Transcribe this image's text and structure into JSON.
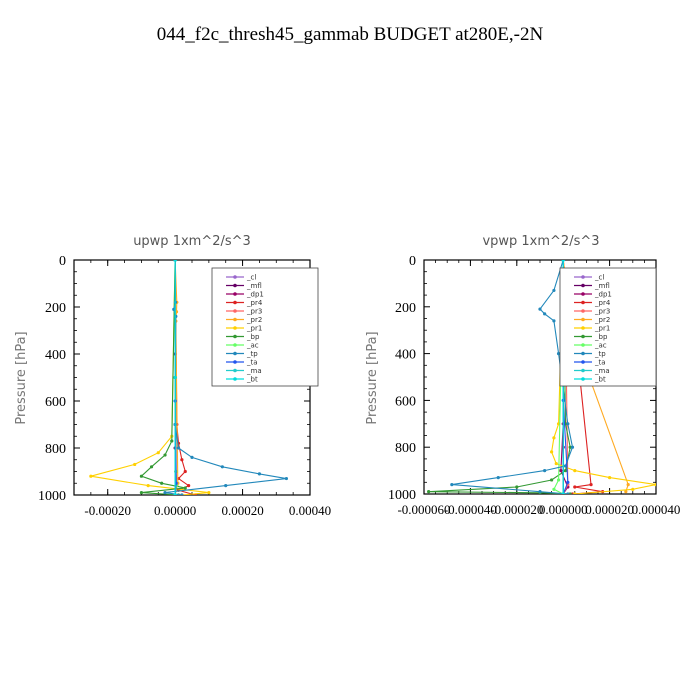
{
  "figure": {
    "title": "044_f2c_thresh45_gammab  BUDGET at280E,-2N"
  },
  "chart_data": [
    {
      "type": "line",
      "title": "upwp   1xm^2/s^3",
      "ylabel": "Pressure  [hPa]",
      "ylim": [
        1000,
        0
      ],
      "xlim": [
        -0.0003,
        0.0004
      ],
      "y_ticks": [
        0,
        200,
        400,
        600,
        800,
        1000
      ],
      "y_tick_labels": [
        "0",
        "200",
        "400",
        "600",
        "800",
        "1000"
      ],
      "x_ticks": [
        -0.0002,
        0.0,
        0.0002,
        0.0004
      ],
      "x_tick_labels": [
        "-0.00020",
        "0.00000",
        "0.00020",
        "0.00040"
      ],
      "legend_position": "top-right",
      "series": [
        {
          "name": "_cl",
          "color": "#9966cc",
          "x": [
            0,
            0,
            0
          ],
          "y": [
            0,
            500,
            1000
          ]
        },
        {
          "name": "_mfl",
          "color": "#660066",
          "x": [
            0,
            0,
            0,
            0
          ],
          "y": [
            0,
            400,
            800,
            1000
          ]
        },
        {
          "name": "_dp1",
          "color": "#990066",
          "x": [
            0,
            0,
            2e-06,
            4e-06,
            0
          ],
          "y": [
            0,
            700,
            900,
            960,
            1000
          ]
        },
        {
          "name": "_pr4",
          "color": "#dd2222",
          "x": [
            0,
            5e-06,
            1e-05,
            2e-05,
            3e-05,
            1e-05,
            4e-05,
            1e-05,
            6e-05
          ],
          "y": [
            0,
            700,
            780,
            850,
            900,
            930,
            960,
            980,
            1000
          ]
        },
        {
          "name": "_pr3",
          "color": "#ff6666",
          "x": [
            0,
            3e-06,
            5e-06,
            0
          ],
          "y": [
            0,
            900,
            960,
            1000
          ]
        },
        {
          "name": "_pr2",
          "color": "#ffaa22",
          "x": [
            0,
            5e-06,
            4e-06,
            2e-06,
            8e-06,
            0
          ],
          "y": [
            0,
            180,
            220,
            260,
            950,
            1000
          ]
        },
        {
          "name": "_pr1",
          "color": "#ffd000",
          "x": [
            0,
            -1e-05,
            -5e-05,
            -0.00012,
            -0.00025,
            -8e-05,
            0.0001,
            2e-05
          ],
          "y": [
            0,
            750,
            820,
            870,
            920,
            960,
            990,
            1000
          ]
        },
        {
          "name": "_bp",
          "color": "#339933",
          "x": [
            0,
            -1e-05,
            -3e-05,
            -7e-05,
            -0.0001,
            -4e-05,
            3e-05,
            -0.0001,
            1e-05
          ],
          "y": [
            0,
            770,
            830,
            880,
            920,
            950,
            970,
            990,
            1000
          ]
        },
        {
          "name": "_ac",
          "color": "#66ff66",
          "x": [
            0,
            2e-06,
            4e-06,
            0
          ],
          "y": [
            0,
            900,
            960,
            1000
          ]
        },
        {
          "name": "_tp",
          "color": "#2288bb",
          "x": [
            0,
            1e-06,
            -4e-06,
            2e-06,
            0,
            1e-05,
            5e-05,
            0.00014,
            0.00025,
            0.00033,
            0.00015,
            -3e-05,
            2e-05
          ],
          "y": [
            0,
            180,
            210,
            240,
            700,
            800,
            840,
            880,
            910,
            930,
            960,
            990,
            1000
          ]
        },
        {
          "name": "_ta",
          "color": "#2255ee",
          "x": [
            0,
            0,
            3e-06,
            0
          ],
          "y": [
            0,
            600,
            950,
            1000
          ]
        },
        {
          "name": "_ma",
          "color": "#22cccc",
          "x": [
            0,
            0,
            0
          ],
          "y": [
            0,
            500,
            1000
          ]
        },
        {
          "name": "_bt",
          "color": "#00dddd",
          "x": [
            0,
            0,
            0
          ],
          "y": [
            0,
            500,
            1000
          ]
        }
      ]
    },
    {
      "type": "line",
      "title": "vpwp   1xm^2/s^3",
      "ylabel": "Pressure  [hPa]",
      "ylim": [
        1000,
        0
      ],
      "xlim": [
        -6e-05,
        4e-05
      ],
      "y_ticks": [
        0,
        200,
        400,
        600,
        800,
        1000
      ],
      "y_tick_labels": [
        "0",
        "200",
        "400",
        "600",
        "800",
        "1000"
      ],
      "x_ticks": [
        -6e-05,
        -4e-05,
        -2e-05,
        0.0,
        2e-05,
        4e-05
      ],
      "x_tick_labels": [
        "-0.000060",
        "-0.000040",
        "-0.000020",
        "0.000000",
        "0.000020",
        "0.000040"
      ],
      "legend_position": "top-right",
      "series": [
        {
          "name": "_cl",
          "color": "#9966cc",
          "x": [
            0,
            0,
            0
          ],
          "y": [
            0,
            500,
            1000
          ]
        },
        {
          "name": "_mfl",
          "color": "#660066",
          "x": [
            0,
            0,
            0,
            0
          ],
          "y": [
            0,
            400,
            800,
            1000
          ]
        },
        {
          "name": "_dp1",
          "color": "#990066",
          "x": [
            0,
            0,
            -1e-06,
            2e-06,
            0
          ],
          "y": [
            0,
            700,
            900,
            970,
            1000
          ]
        },
        {
          "name": "_pr4",
          "color": "#dd2222",
          "x": [
            0,
            2e-06,
            4e-06,
            1.2e-05,
            5e-06,
            1.7e-05,
            4e-06
          ],
          "y": [
            0,
            150,
            200,
            960,
            970,
            990,
            1000
          ]
        },
        {
          "name": "_pr3",
          "color": "#ff6666",
          "x": [
            0,
            1e-06,
            2e-06,
            0
          ],
          "y": [
            0,
            200,
            960,
            1000
          ]
        },
        {
          "name": "_pr2",
          "color": "#ffaa22",
          "x": [
            0,
            2e-06,
            3e-06,
            1e-06,
            2.8e-05,
            2.7e-05
          ],
          "y": [
            0,
            140,
            180,
            220,
            960,
            990
          ]
        },
        {
          "name": "_pr1",
          "color": "#ffd000",
          "x": [
            0,
            -2e-06,
            -4e-06,
            -5e-06,
            -3e-06,
            5e-06,
            2e-05,
            4e-05,
            3e-05,
            5e-06
          ],
          "y": [
            0,
            700,
            760,
            820,
            870,
            900,
            930,
            960,
            980,
            1000
          ]
        },
        {
          "name": "_bp",
          "color": "#339933",
          "x": [
            0,
            1e-06,
            3e-06,
            1e-06,
            -5e-06,
            -2e-05,
            -5.8e-05,
            -1e-05,
            3e-06
          ],
          "y": [
            0,
            700,
            800,
            900,
            940,
            970,
            990,
            995,
            1000
          ]
        },
        {
          "name": "_ac",
          "color": "#66ff66",
          "x": [
            0,
            -2e-06,
            -4e-06,
            0
          ],
          "y": [
            0,
            940,
            980,
            1000
          ]
        },
        {
          "name": "_tp",
          "color": "#2288bb",
          "x": [
            0,
            -4e-06,
            -1e-05,
            -8e-06,
            -4e-06,
            -2e-06,
            2e-06,
            4e-06,
            1e-06,
            -8e-06,
            -2.8e-05,
            -4.8e-05,
            -1e-05,
            2e-06
          ],
          "y": [
            0,
            130,
            210,
            230,
            260,
            400,
            700,
            800,
            880,
            900,
            930,
            960,
            990,
            1000
          ]
        },
        {
          "name": "_ta",
          "color": "#2255ee",
          "x": [
            0,
            0,
            2e-06,
            0
          ],
          "y": [
            0,
            600,
            950,
            1000
          ]
        },
        {
          "name": "_ma",
          "color": "#22cccc",
          "x": [
            0,
            0,
            0
          ],
          "y": [
            0,
            500,
            1000
          ]
        },
        {
          "name": "_bt",
          "color": "#00dddd",
          "x": [
            0,
            0,
            0
          ],
          "y": [
            0,
            500,
            1000
          ]
        }
      ]
    }
  ]
}
